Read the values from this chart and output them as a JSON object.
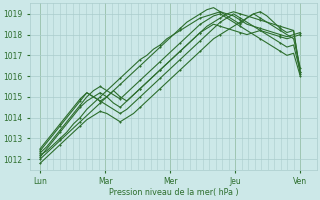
{
  "bg_color": "#cce8e8",
  "grid_color": "#aacccc",
  "line_color": "#2d6e2d",
  "xlabel": "Pression niveau de la mer( hPa )",
  "xtick_labels": [
    "Lun",
    "Mar",
    "Mer",
    "Jeu",
    "Ven"
  ],
  "ylim": [
    1011.5,
    1019.5
  ],
  "yticks": [
    1012,
    1013,
    1014,
    1015,
    1016,
    1017,
    1018,
    1019
  ],
  "figsize": [
    3.2,
    2.0
  ],
  "dpi": 100,
  "series": [
    {
      "data": [
        1012.2,
        1012.4,
        1012.7,
        1013.0,
        1013.3,
        1013.7,
        1014.0,
        1014.4,
        1014.7,
        1015.0,
        1015.3,
        1015.6,
        1015.9,
        1016.2,
        1016.5,
        1016.8,
        1017.0,
        1017.3,
        1017.5,
        1017.8,
        1018.0,
        1018.2,
        1018.4,
        1018.6,
        1018.8,
        1018.9,
        1019.0,
        1019.1,
        1019.0,
        1018.9,
        1018.7,
        1018.5,
        1018.4,
        1018.3,
        1018.2,
        1018.1,
        1018.0,
        1017.9,
        1018.0,
        1018.1
      ],
      "marker": "+",
      "lw": 0.8
    },
    {
      "data": [
        1012.0,
        1012.3,
        1012.6,
        1012.9,
        1013.2,
        1013.5,
        1013.8,
        1014.1,
        1014.4,
        1014.7,
        1015.0,
        1015.3,
        1015.0,
        1014.8,
        1015.1,
        1015.4,
        1015.7,
        1016.0,
        1016.3,
        1016.6,
        1016.9,
        1017.2,
        1017.5,
        1017.8,
        1018.1,
        1018.3,
        1018.5,
        1018.4,
        1018.3,
        1018.2,
        1018.1,
        1018.0,
        1018.1,
        1018.2,
        1018.1,
        1018.0,
        1017.9,
        1017.8,
        1017.9,
        1018.0
      ],
      "marker": "+",
      "lw": 0.8
    },
    {
      "data": [
        1012.4,
        1012.8,
        1013.2,
        1013.6,
        1014.0,
        1014.4,
        1014.8,
        1015.2,
        1015.0,
        1014.8,
        1015.0,
        1015.3,
        1015.6,
        1015.9,
        1016.2,
        1016.5,
        1016.8,
        1017.1,
        1017.4,
        1017.7,
        1018.0,
        1018.3,
        1018.6,
        1018.8,
        1019.0,
        1019.2,
        1019.3,
        1019.1,
        1018.9,
        1018.7,
        1018.5,
        1018.8,
        1019.0,
        1019.1,
        1018.9,
        1018.6,
        1018.3,
        1018.1,
        1018.2,
        1016.2
      ],
      "marker": "+",
      "lw": 0.8
    },
    {
      "data": [
        1012.1,
        1012.5,
        1012.9,
        1013.3,
        1013.7,
        1014.1,
        1014.5,
        1014.8,
        1015.0,
        1015.2,
        1015.0,
        1014.7,
        1014.5,
        1014.8,
        1015.1,
        1015.4,
        1015.7,
        1016.0,
        1016.3,
        1016.6,
        1016.9,
        1017.2,
        1017.5,
        1017.8,
        1018.1,
        1018.4,
        1018.6,
        1018.8,
        1019.0,
        1019.1,
        1019.0,
        1018.9,
        1018.8,
        1018.7,
        1018.6,
        1018.5,
        1018.4,
        1018.3,
        1018.2,
        1016.1
      ],
      "marker": "+",
      "lw": 0.8
    },
    {
      "data": [
        1011.8,
        1012.1,
        1012.4,
        1012.7,
        1013.0,
        1013.3,
        1013.6,
        1013.9,
        1014.1,
        1014.3,
        1014.2,
        1014.0,
        1013.8,
        1014.0,
        1014.2,
        1014.5,
        1014.8,
        1015.1,
        1015.4,
        1015.7,
        1016.0,
        1016.3,
        1016.6,
        1016.9,
        1017.2,
        1017.5,
        1017.8,
        1018.0,
        1018.2,
        1018.4,
        1018.6,
        1018.8,
        1019.0,
        1018.8,
        1018.6,
        1018.4,
        1018.2,
        1018.0,
        1017.8,
        1016.4
      ],
      "marker": "+",
      "lw": 0.8
    },
    {
      "data": [
        1012.5,
        1012.9,
        1013.3,
        1013.7,
        1014.1,
        1014.5,
        1014.9,
        1015.2,
        1015.0,
        1014.8,
        1014.6,
        1014.4,
        1014.2,
        1014.4,
        1014.7,
        1015.0,
        1015.3,
        1015.6,
        1015.9,
        1016.2,
        1016.5,
        1016.8,
        1017.1,
        1017.4,
        1017.7,
        1018.0,
        1018.3,
        1018.6,
        1018.8,
        1019.0,
        1018.8,
        1018.6,
        1018.4,
        1018.2,
        1018.0,
        1017.8,
        1017.6,
        1017.4,
        1017.5,
        1016.2
      ],
      "marker": "+",
      "lw": 0.8
    },
    {
      "data": [
        1012.3,
        1012.6,
        1013.0,
        1013.4,
        1013.8,
        1014.2,
        1014.6,
        1015.0,
        1015.3,
        1015.5,
        1015.3,
        1015.1,
        1014.9,
        1015.2,
        1015.5,
        1015.8,
        1016.1,
        1016.4,
        1016.7,
        1017.0,
        1017.3,
        1017.6,
        1017.9,
        1018.2,
        1018.5,
        1018.7,
        1018.9,
        1019.0,
        1018.8,
        1018.6,
        1018.4,
        1018.2,
        1018.0,
        1017.8,
        1017.6,
        1017.4,
        1017.2,
        1017.0,
        1017.1,
        1016.0
      ],
      "marker": "+",
      "lw": 0.8
    }
  ]
}
